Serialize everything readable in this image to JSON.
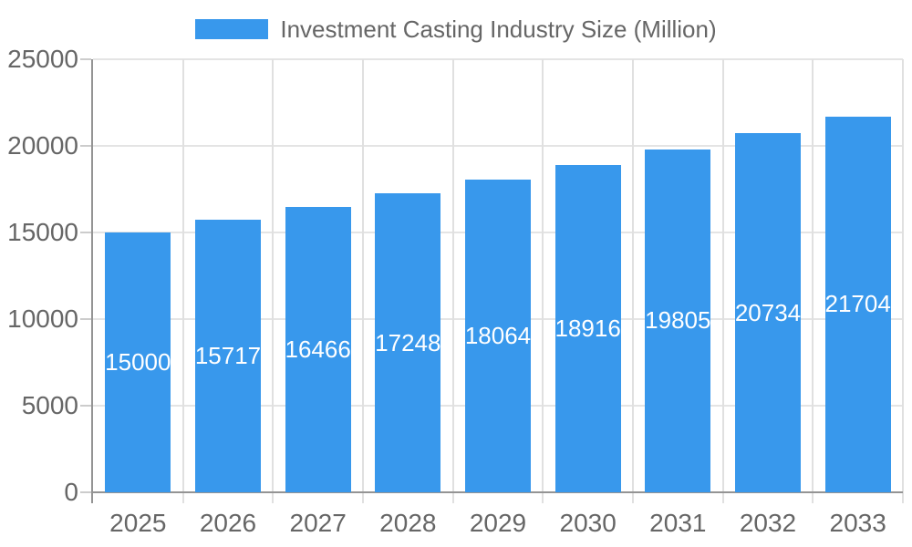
{
  "legend": {
    "label": "Investment Casting Industry Size (Million)",
    "swatch_color": "#3898EC"
  },
  "chart_data": {
    "type": "bar",
    "title": "",
    "categories": [
      "2025",
      "2026",
      "2027",
      "2028",
      "2029",
      "2030",
      "2031",
      "2032",
      "2033"
    ],
    "values": [
      15000,
      15717,
      16466,
      17248,
      18064,
      18916,
      19805,
      20734,
      21704
    ],
    "series": [
      {
        "name": "Investment Casting Industry Size (Million)",
        "values": [
          15000,
          15717,
          16466,
          17248,
          18064,
          18916,
          19805,
          20734,
          21704
        ],
        "color": "#3898EC"
      }
    ],
    "xlabel": "",
    "ylabel": "",
    "ylim": [
      0,
      25000
    ],
    "yticks": [
      0,
      5000,
      10000,
      15000,
      20000,
      25000
    ],
    "grid": true,
    "legend_position": "top",
    "value_labels_position": "inside-center",
    "value_label_color": "#FFFFFF",
    "axis_text_color": "#666666",
    "gridline_color": "#E4E4E4",
    "axis_line_color": "#949494",
    "background_color": "#FFFFFF"
  }
}
